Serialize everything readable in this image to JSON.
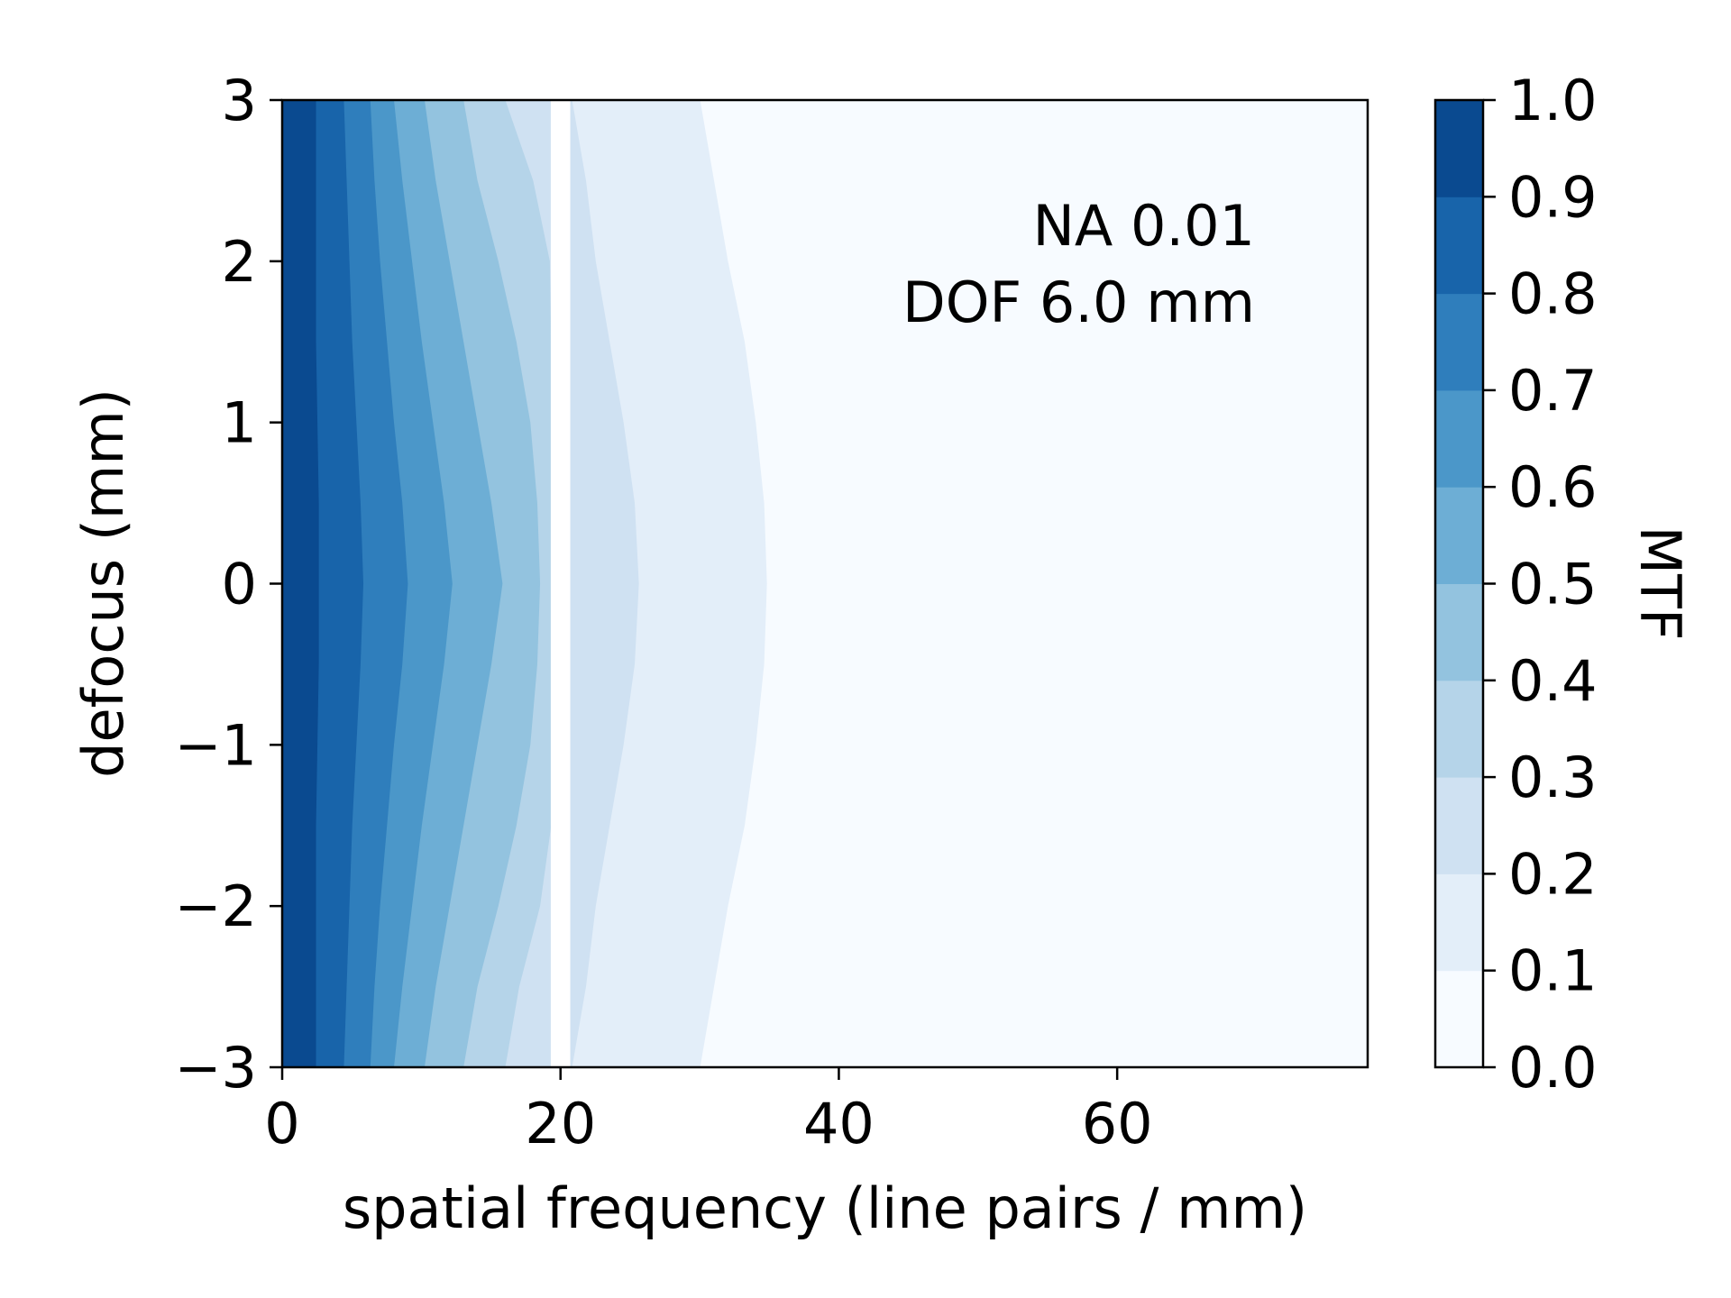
{
  "chart_data": {
    "type": "contourf",
    "title": "",
    "xlabel": "spatial frequency (line pairs / mm)",
    "ylabel": "defocus (mm)",
    "colorbar_label": "MTF",
    "xlim": [
      0,
      78
    ],
    "ylim": [
      -3,
      3
    ],
    "xticks": [
      0,
      20,
      40,
      60
    ],
    "xtick_labels": [
      "0",
      "20",
      "40",
      "60"
    ],
    "yticks": [
      -3,
      -2,
      -1,
      0,
      1,
      2,
      3
    ],
    "ytick_labels": [
      "−3",
      "−2",
      "−1",
      "0",
      "1",
      "2",
      "3"
    ],
    "levels": [
      0.0,
      0.1,
      0.2,
      0.3,
      0.4,
      0.5,
      0.6,
      0.7,
      0.8,
      0.9,
      1.0
    ],
    "level_labels": [
      "0.0",
      "0.1",
      "0.2",
      "0.3",
      "0.4",
      "0.5",
      "0.6",
      "0.7",
      "0.8",
      "0.9",
      "1.0"
    ],
    "level_colors": [
      "#f7fbff",
      "#e3eef9",
      "#cfe1f2",
      "#b5d4e9",
      "#93c3df",
      "#6daed5",
      "#4b97c9",
      "#2f7ebc",
      "#1864aa",
      "#0a4a90",
      "#08306b"
    ],
    "colormap": "Blues",
    "gap_band": [
      19.3,
      20.7
    ],
    "contour_y": [
      -3.0,
      -2.5,
      -2.0,
      -1.5,
      -1.0,
      -0.5,
      0.0,
      0.5,
      1.0,
      1.5,
      2.0,
      2.5,
      3.0
    ],
    "contour_boundaries": [
      {
        "level": 0.9,
        "x": [
          2.4,
          2.4,
          2.4,
          2.4,
          2.5,
          2.6,
          2.6,
          2.6,
          2.5,
          2.4,
          2.4,
          2.4,
          2.4
        ]
      },
      {
        "level": 0.8,
        "x": [
          4.4,
          4.6,
          4.8,
          5.0,
          5.3,
          5.6,
          5.8,
          5.6,
          5.3,
          5.0,
          4.8,
          4.6,
          4.4
        ]
      },
      {
        "level": 0.7,
        "x": [
          6.3,
          6.6,
          7.0,
          7.5,
          8.0,
          8.6,
          9.0,
          8.6,
          8.0,
          7.5,
          7.0,
          6.6,
          6.3
        ]
      },
      {
        "level": 0.6,
        "x": [
          8.0,
          8.6,
          9.3,
          10.0,
          10.8,
          11.6,
          12.2,
          11.6,
          10.8,
          10.0,
          9.3,
          8.6,
          8.0
        ]
      },
      {
        "level": 0.5,
        "x": [
          10.2,
          11.0,
          12.0,
          13.0,
          14.0,
          15.0,
          15.8,
          15.0,
          14.0,
          13.0,
          12.0,
          11.0,
          10.2
        ]
      },
      {
        "level": 0.4,
        "x": [
          13.0,
          14.0,
          15.5,
          16.8,
          17.8,
          18.3,
          18.5,
          18.3,
          17.8,
          16.8,
          15.5,
          14.0,
          13.0
        ]
      },
      {
        "level": 0.3,
        "x": [
          16.0,
          17.0,
          18.5,
          19.3,
          19.3,
          19.3,
          19.3,
          19.3,
          19.3,
          19.3,
          19.2,
          18.0,
          16.0
        ]
      },
      {
        "level": 0.2,
        "x": [
          20.8,
          21.8,
          22.5,
          23.5,
          24.5,
          25.3,
          25.6,
          25.3,
          24.5,
          23.5,
          22.5,
          21.8,
          20.8
        ]
      },
      {
        "level": 0.1,
        "x": [
          30.0,
          31.0,
          32.0,
          33.2,
          34.0,
          34.6,
          34.8,
          34.6,
          34.0,
          33.2,
          32.0,
          31.0,
          30.0
        ]
      }
    ],
    "annotations": [
      "NA 0.01",
      "DOF 6.0 mm"
    ]
  }
}
